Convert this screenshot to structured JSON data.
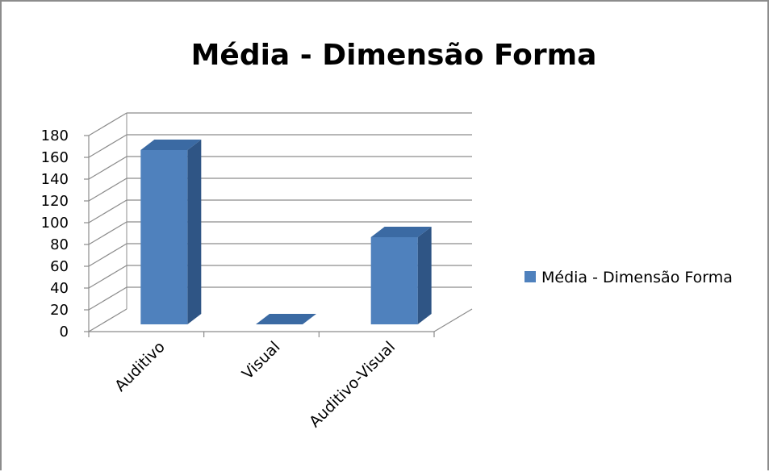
{
  "chart_data": {
    "type": "bar",
    "title": "Média - Dimensão Forma",
    "categories": [
      "Auditivo",
      "Visual",
      "Auditivo-Visual"
    ],
    "series": [
      {
        "name": "Média - Dimensão Forma",
        "values": [
          160,
          0,
          80
        ]
      }
    ],
    "y_ticks": [
      "0",
      "20",
      "40",
      "60",
      "80",
      "100",
      "120",
      "140",
      "160",
      "180"
    ],
    "ylim": [
      0,
      180
    ],
    "xlabel": "",
    "ylabel": "",
    "grid": true,
    "legend_position": "right",
    "three_d": true,
    "colors": {
      "bar_front": "#4f81bd",
      "bar_side": "#2f5585",
      "bar_top": "#3b6aa3",
      "gridline": "#8c8c8c",
      "frame": "#8c8c8c"
    }
  }
}
